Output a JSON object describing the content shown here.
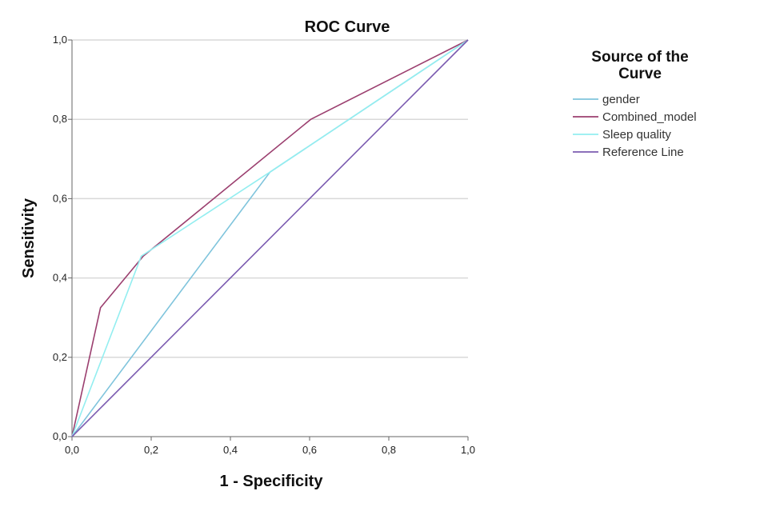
{
  "chart_data": {
    "type": "line",
    "title": "ROC Curve",
    "xlabel": "1 - Specificity",
    "ylabel": "Sensitivity",
    "xlim": [
      0,
      1
    ],
    "ylim": [
      0,
      1
    ],
    "x_ticks": [
      "0,0",
      "0,2",
      "0,4",
      "0,6",
      "0,8",
      "1,0"
    ],
    "y_ticks": [
      "0,0",
      "0,2",
      "0,4",
      "0,6",
      "0,8",
      "1,0"
    ],
    "tick_values": [
      0,
      0.2,
      0.4,
      0.6,
      0.8,
      1.0
    ],
    "grid": "horizontal",
    "legend": {
      "title_line1": "Source of the",
      "title_line2": "Curve",
      "position": "right"
    },
    "series": [
      {
        "name": "gender",
        "color": "#7fc4dc",
        "x": [
          0,
          0.5,
          1
        ],
        "y": [
          0,
          0.667,
          1
        ]
      },
      {
        "name": "Combined_model",
        "color": "#9b3f6f",
        "x": [
          0,
          0.072,
          0.18,
          0.603,
          1
        ],
        "y": [
          0,
          0.325,
          0.455,
          0.8,
          1
        ]
      },
      {
        "name": "Sleep quality",
        "color": "#93eef0",
        "x": [
          0,
          0.175,
          0.5,
          1
        ],
        "y": [
          0,
          0.455,
          0.667,
          1
        ]
      },
      {
        "name": "Reference Line",
        "color": "#7b5bb0",
        "x": [
          0,
          1
        ],
        "y": [
          0,
          1
        ]
      }
    ]
  }
}
